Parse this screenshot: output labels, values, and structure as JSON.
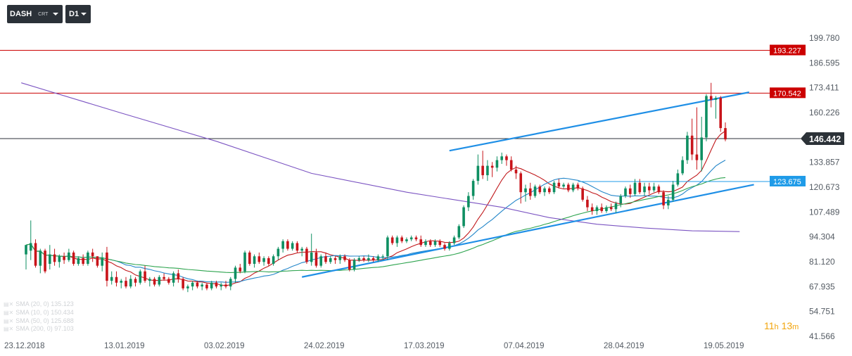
{
  "toolbar": {
    "symbol": "DASH",
    "symbol_sub": "CRT",
    "timeframe": "D1"
  },
  "legend": [
    {
      "label": "SMA (20, 0) 135.123"
    },
    {
      "label": "SMA (10, 0) 150.434"
    },
    {
      "label": "SMA (50, 0) 125.688"
    },
    {
      "label": "SMA (200, 0) 97.103"
    }
  ],
  "timer": {
    "hours": "11",
    "h_unit": "h",
    "minutes": "13",
    "m_unit": "m"
  },
  "chart_data": {
    "type": "candlestick",
    "y_ticks": [
      "199.780",
      "186.595",
      "173.411",
      "160.226",
      "146.442",
      "133.857",
      "120.673",
      "107.489",
      "94.304",
      "81.120",
      "67.935",
      "54.751",
      "41.566"
    ],
    "y_tick_values": [
      199.78,
      186.595,
      173.411,
      160.226,
      146.442,
      133.857,
      120.673,
      107.489,
      94.304,
      81.12,
      67.935,
      54.751,
      41.566
    ],
    "x_ticks": [
      "23.12.2018",
      "13.01.2019",
      "03.02.2019",
      "24.02.2019",
      "17.03.2019",
      "07.04.2019",
      "28.04.2019",
      "19.05.2019"
    ],
    "x_tick_days": [
      0,
      21,
      42,
      63,
      84,
      105,
      126,
      147
    ],
    "horizontal_lines": [
      {
        "value": 193.227,
        "label": "193.227",
        "color": "#cc0000"
      },
      {
        "value": 170.542,
        "label": "170.542",
        "color": "#cc0000"
      },
      {
        "value": 123.675,
        "label": "123.675",
        "color": "#1f9be8"
      }
    ],
    "current_price": {
      "value": 146.442,
      "label": "146.442"
    },
    "candles": [
      {
        "o": 85,
        "h": 90,
        "l": 77,
        "c": 90
      },
      {
        "o": 87,
        "h": 103,
        "l": 82,
        "c": 91
      },
      {
        "o": 91,
        "h": 93,
        "l": 78,
        "c": 79
      },
      {
        "o": 79,
        "h": 88,
        "l": 75,
        "c": 87
      },
      {
        "o": 87,
        "h": 88,
        "l": 75,
        "c": 76
      },
      {
        "o": 80,
        "h": 90,
        "l": 77,
        "c": 85
      },
      {
        "o": 85,
        "h": 88,
        "l": 79,
        "c": 81
      },
      {
        "o": 81,
        "h": 85,
        "l": 78,
        "c": 84
      },
      {
        "o": 84,
        "h": 86,
        "l": 80,
        "c": 82
      },
      {
        "o": 82,
        "h": 88,
        "l": 81,
        "c": 86
      },
      {
        "o": 86,
        "h": 87,
        "l": 79,
        "c": 80
      },
      {
        "o": 80,
        "h": 84,
        "l": 79,
        "c": 83
      },
      {
        "o": 83,
        "h": 85,
        "l": 79,
        "c": 80
      },
      {
        "o": 80,
        "h": 87,
        "l": 79,
        "c": 86
      },
      {
        "o": 86,
        "h": 88,
        "l": 81,
        "c": 84
      },
      {
        "o": 84,
        "h": 84,
        "l": 78,
        "c": 79
      },
      {
        "o": 79,
        "h": 86,
        "l": 76,
        "c": 83
      },
      {
        "o": 86,
        "h": 89,
        "l": 68,
        "c": 71
      },
      {
        "o": 71,
        "h": 76,
        "l": 69,
        "c": 73
      },
      {
        "o": 73,
        "h": 76,
        "l": 68,
        "c": 70
      },
      {
        "o": 70,
        "h": 72,
        "l": 67,
        "c": 71
      },
      {
        "o": 71,
        "h": 73,
        "l": 67,
        "c": 68
      },
      {
        "o": 68,
        "h": 74,
        "l": 67,
        "c": 72
      },
      {
        "o": 72,
        "h": 73,
        "l": 68,
        "c": 70
      },
      {
        "o": 70,
        "h": 77,
        "l": 69,
        "c": 76
      },
      {
        "o": 76,
        "h": 79,
        "l": 70,
        "c": 71
      },
      {
        "o": 71,
        "h": 73,
        "l": 68,
        "c": 72
      },
      {
        "o": 72,
        "h": 73,
        "l": 68,
        "c": 69
      },
      {
        "o": 69,
        "h": 74,
        "l": 68,
        "c": 73
      },
      {
        "o": 73,
        "h": 75,
        "l": 71,
        "c": 72
      },
      {
        "o": 72,
        "h": 73,
        "l": 69,
        "c": 70
      },
      {
        "o": 70,
        "h": 76,
        "l": 68,
        "c": 75
      },
      {
        "o": 75,
        "h": 77,
        "l": 70,
        "c": 72
      },
      {
        "o": 72,
        "h": 73,
        "l": 66,
        "c": 67
      },
      {
        "o": 67,
        "h": 69,
        "l": 65,
        "c": 68
      },
      {
        "o": 68,
        "h": 71,
        "l": 66,
        "c": 70
      },
      {
        "o": 70,
        "h": 71,
        "l": 67,
        "c": 68
      },
      {
        "o": 68,
        "h": 70,
        "l": 66,
        "c": 69
      },
      {
        "o": 69,
        "h": 70,
        "l": 66,
        "c": 67
      },
      {
        "o": 67,
        "h": 71,
        "l": 66,
        "c": 70
      },
      {
        "o": 70,
        "h": 71,
        "l": 67,
        "c": 68
      },
      {
        "o": 68,
        "h": 70,
        "l": 66,
        "c": 69
      },
      {
        "o": 69,
        "h": 71,
        "l": 67,
        "c": 68
      },
      {
        "o": 68,
        "h": 73,
        "l": 66,
        "c": 72
      },
      {
        "o": 72,
        "h": 79,
        "l": 70,
        "c": 78
      },
      {
        "o": 78,
        "h": 80,
        "l": 75,
        "c": 76
      },
      {
        "o": 76,
        "h": 87,
        "l": 75,
        "c": 86
      },
      {
        "o": 86,
        "h": 87,
        "l": 79,
        "c": 80
      },
      {
        "o": 80,
        "h": 85,
        "l": 78,
        "c": 84
      },
      {
        "o": 84,
        "h": 86,
        "l": 80,
        "c": 81
      },
      {
        "o": 81,
        "h": 84,
        "l": 79,
        "c": 83
      },
      {
        "o": 83,
        "h": 84,
        "l": 79,
        "c": 80
      },
      {
        "o": 80,
        "h": 85,
        "l": 79,
        "c": 84
      },
      {
        "o": 84,
        "h": 89,
        "l": 82,
        "c": 88
      },
      {
        "o": 88,
        "h": 93,
        "l": 86,
        "c": 92
      },
      {
        "o": 92,
        "h": 93,
        "l": 87,
        "c": 88
      },
      {
        "o": 88,
        "h": 92,
        "l": 87,
        "c": 91
      },
      {
        "o": 91,
        "h": 92,
        "l": 86,
        "c": 87
      },
      {
        "o": 87,
        "h": 89,
        "l": 84,
        "c": 88
      },
      {
        "o": 88,
        "h": 89,
        "l": 80,
        "c": 81
      },
      {
        "o": 81,
        "h": 96,
        "l": 79,
        "c": 86
      },
      {
        "o": 86,
        "h": 88,
        "l": 78,
        "c": 79
      },
      {
        "o": 79,
        "h": 85,
        "l": 78,
        "c": 84
      },
      {
        "o": 84,
        "h": 86,
        "l": 80,
        "c": 81
      },
      {
        "o": 81,
        "h": 84,
        "l": 80,
        "c": 83
      },
      {
        "o": 83,
        "h": 84,
        "l": 80,
        "c": 82
      },
      {
        "o": 82,
        "h": 85,
        "l": 80,
        "c": 84
      },
      {
        "o": 84,
        "h": 85,
        "l": 81,
        "c": 82
      },
      {
        "o": 82,
        "h": 83,
        "l": 76,
        "c": 77
      },
      {
        "o": 77,
        "h": 83,
        "l": 76,
        "c": 82
      },
      {
        "o": 82,
        "h": 84,
        "l": 81,
        "c": 83
      },
      {
        "o": 83,
        "h": 84,
        "l": 81,
        "c": 82
      },
      {
        "o": 82,
        "h": 85,
        "l": 81,
        "c": 83
      },
      {
        "o": 83,
        "h": 84,
        "l": 81,
        "c": 82
      },
      {
        "o": 82,
        "h": 85,
        "l": 81,
        "c": 84
      },
      {
        "o": 84,
        "h": 85,
        "l": 82,
        "c": 84
      },
      {
        "o": 84,
        "h": 95,
        "l": 82,
        "c": 94
      },
      {
        "o": 94,
        "h": 95,
        "l": 90,
        "c": 91
      },
      {
        "o": 91,
        "h": 95,
        "l": 89,
        "c": 94
      },
      {
        "o": 94,
        "h": 95,
        "l": 91,
        "c": 92
      },
      {
        "o": 92,
        "h": 94,
        "l": 91,
        "c": 93
      },
      {
        "o": 93,
        "h": 95,
        "l": 92,
        "c": 94
      },
      {
        "o": 94,
        "h": 95,
        "l": 92,
        "c": 93
      },
      {
        "o": 93,
        "h": 95,
        "l": 89,
        "c": 90
      },
      {
        "o": 90,
        "h": 93,
        "l": 89,
        "c": 92
      },
      {
        "o": 92,
        "h": 93,
        "l": 89,
        "c": 90
      },
      {
        "o": 90,
        "h": 93,
        "l": 89,
        "c": 92
      },
      {
        "o": 92,
        "h": 93,
        "l": 89,
        "c": 90
      },
      {
        "o": 90,
        "h": 91,
        "l": 87,
        "c": 88
      },
      {
        "o": 88,
        "h": 92,
        "l": 87,
        "c": 91
      },
      {
        "o": 91,
        "h": 95,
        "l": 90,
        "c": 94
      },
      {
        "o": 94,
        "h": 101,
        "l": 93,
        "c": 100
      },
      {
        "o": 100,
        "h": 111,
        "l": 99,
        "c": 110
      },
      {
        "o": 110,
        "h": 118,
        "l": 108,
        "c": 116
      },
      {
        "o": 116,
        "h": 125,
        "l": 114,
        "c": 124
      },
      {
        "o": 124,
        "h": 138,
        "l": 122,
        "c": 132
      },
      {
        "o": 132,
        "h": 140,
        "l": 125,
        "c": 127
      },
      {
        "o": 127,
        "h": 135,
        "l": 124,
        "c": 132
      },
      {
        "o": 132,
        "h": 134,
        "l": 126,
        "c": 131
      },
      {
        "o": 131,
        "h": 137,
        "l": 129,
        "c": 135
      },
      {
        "o": 135,
        "h": 139,
        "l": 133,
        "c": 137
      },
      {
        "o": 137,
        "h": 138,
        "l": 132,
        "c": 135
      },
      {
        "o": 135,
        "h": 137,
        "l": 129,
        "c": 130
      },
      {
        "o": 130,
        "h": 132,
        "l": 125,
        "c": 128
      },
      {
        "o": 128,
        "h": 129,
        "l": 112,
        "c": 118
      },
      {
        "o": 118,
        "h": 122,
        "l": 113,
        "c": 120
      },
      {
        "o": 120,
        "h": 123,
        "l": 114,
        "c": 116
      },
      {
        "o": 116,
        "h": 122,
        "l": 115,
        "c": 121
      },
      {
        "o": 121,
        "h": 122,
        "l": 117,
        "c": 118
      },
      {
        "o": 118,
        "h": 121,
        "l": 116,
        "c": 120
      },
      {
        "o": 120,
        "h": 121,
        "l": 117,
        "c": 118
      },
      {
        "o": 118,
        "h": 124,
        "l": 117,
        "c": 123
      },
      {
        "o": 123,
        "h": 125,
        "l": 120,
        "c": 121
      },
      {
        "o": 121,
        "h": 123,
        "l": 120,
        "c": 122
      },
      {
        "o": 122,
        "h": 123,
        "l": 118,
        "c": 119
      },
      {
        "o": 119,
        "h": 123,
        "l": 118,
        "c": 122
      },
      {
        "o": 122,
        "h": 123,
        "l": 119,
        "c": 120
      },
      {
        "o": 120,
        "h": 121,
        "l": 113,
        "c": 114
      },
      {
        "o": 114,
        "h": 116,
        "l": 108,
        "c": 110
      },
      {
        "o": 110,
        "h": 112,
        "l": 106,
        "c": 108
      },
      {
        "o": 108,
        "h": 111,
        "l": 106,
        "c": 110
      },
      {
        "o": 110,
        "h": 112,
        "l": 107,
        "c": 108
      },
      {
        "o": 108,
        "h": 111,
        "l": 107,
        "c": 110
      },
      {
        "o": 110,
        "h": 112,
        "l": 108,
        "c": 109
      },
      {
        "o": 109,
        "h": 113,
        "l": 107,
        "c": 112
      },
      {
        "o": 112,
        "h": 117,
        "l": 110,
        "c": 116
      },
      {
        "o": 116,
        "h": 121,
        "l": 115,
        "c": 120
      },
      {
        "o": 120,
        "h": 122,
        "l": 115,
        "c": 117
      },
      {
        "o": 117,
        "h": 125,
        "l": 116,
        "c": 123
      },
      {
        "o": 123,
        "h": 125,
        "l": 117,
        "c": 118
      },
      {
        "o": 118,
        "h": 123,
        "l": 116,
        "c": 121
      },
      {
        "o": 121,
        "h": 123,
        "l": 117,
        "c": 119
      },
      {
        "o": 119,
        "h": 123,
        "l": 118,
        "c": 121
      },
      {
        "o": 121,
        "h": 122,
        "l": 117,
        "c": 118
      },
      {
        "o": 118,
        "h": 119,
        "l": 109,
        "c": 111
      },
      {
        "o": 111,
        "h": 116,
        "l": 109,
        "c": 114
      },
      {
        "o": 114,
        "h": 124,
        "l": 113,
        "c": 122
      },
      {
        "o": 122,
        "h": 130,
        "l": 121,
        "c": 128
      },
      {
        "o": 128,
        "h": 137,
        "l": 127,
        "c": 135
      },
      {
        "o": 135,
        "h": 150,
        "l": 133,
        "c": 148
      },
      {
        "o": 148,
        "h": 157,
        "l": 135,
        "c": 138
      },
      {
        "o": 138,
        "h": 163,
        "l": 130,
        "c": 135
      },
      {
        "o": 135,
        "h": 158,
        "l": 129,
        "c": 147
      },
      {
        "o": 147,
        "h": 170,
        "l": 145,
        "c": 169
      },
      {
        "o": 169,
        "h": 176,
        "l": 163,
        "c": 167
      },
      {
        "o": 167,
        "h": 169,
        "l": 157,
        "c": 168
      },
      {
        "o": 168,
        "h": 169,
        "l": 150,
        "c": 152
      },
      {
        "o": 152,
        "h": 155,
        "l": 145,
        "c": 146
      }
    ],
    "sma": [
      {
        "name": "SMA (10, 0)",
        "color": "#c0171a"
      },
      {
        "name": "SMA (20, 0)",
        "color": "#2386c9"
      },
      {
        "name": "SMA (50, 0)",
        "color": "#2ea44f"
      },
      {
        "name": "SMA (200, 0)",
        "color": "#7b54c2",
        "points": [
          [
            -1,
            176
          ],
          [
            20,
            160
          ],
          [
            40,
            145
          ],
          [
            60,
            128
          ],
          [
            80,
            118
          ],
          [
            100,
            110
          ],
          [
            110,
            104.5
          ],
          [
            120,
            101
          ],
          [
            130,
            99
          ],
          [
            140,
            97.5
          ],
          [
            148,
            97.2
          ],
          [
            150,
            97.1
          ]
        ]
      }
    ],
    "trendlines": [
      {
        "from": [
          89,
          140
        ],
        "to": [
          152,
          171
        ],
        "color": "#1f8fe6"
      },
      {
        "from": [
          58,
          73
        ],
        "to": [
          153,
          122
        ],
        "color": "#1f8fe6"
      },
      {
        "from": [
          116,
          123.675
        ],
        "to": [
          159,
          123.675
        ],
        "color": "#1f9be8",
        "thin": true
      }
    ],
    "up_color": "#0e8f62",
    "down_color": "#c8141a"
  }
}
